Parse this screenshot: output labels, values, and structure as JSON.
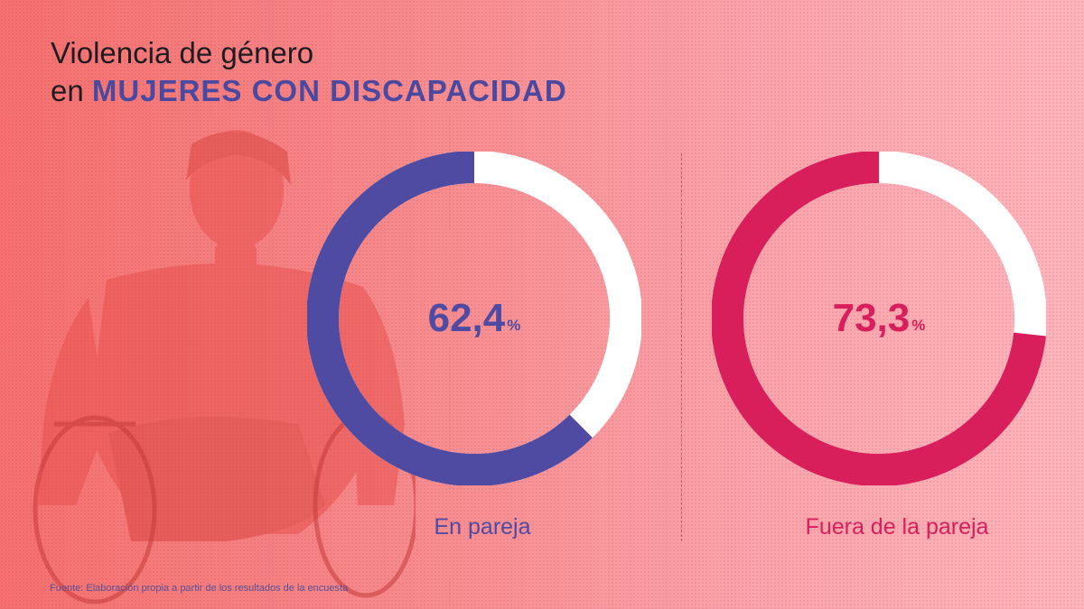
{
  "title": {
    "line1": "Violencia de género",
    "line2_prefix": "en",
    "line2_emphasis": "MUJERES CON DISCAPACIDAD"
  },
  "chart_data": [
    {
      "type": "pie",
      "category": "En pareja",
      "value": 62.4,
      "value_label": "62,4",
      "unit": "%",
      "color": "#4f4ba2",
      "remainder_color": "#ffffff"
    },
    {
      "type": "pie",
      "category": "Fuera de la pareja",
      "value": 73.3,
      "value_label": "73,3",
      "unit": "%",
      "color": "#d81f5b",
      "remainder_color": "#ffffff"
    }
  ],
  "source": "Fuente: Elaboración propia a partir de los resultados de la encuesta"
}
